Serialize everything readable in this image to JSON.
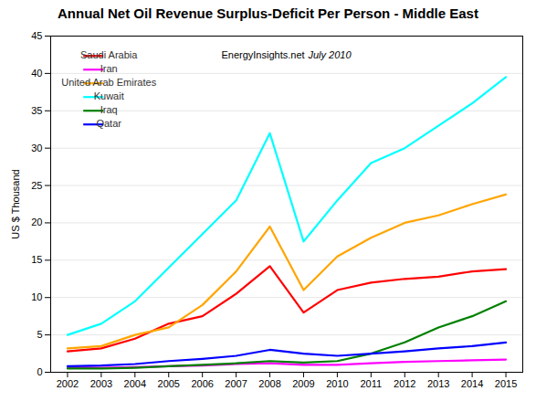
{
  "chart_data": {
    "type": "line",
    "title": "Annual Net Oil Revenue Surplus-Deficit Per Person - Middle East",
    "ylabel": "US $ Thousand",
    "annotations": [
      "EnergyInsights.net",
      "July 2010"
    ],
    "x": [
      2002,
      2003,
      2004,
      2005,
      2006,
      2007,
      2008,
      2009,
      2010,
      2011,
      2012,
      2013,
      2014,
      2015
    ],
    "xlim": [
      2001.5,
      2015.5
    ],
    "xticks": [
      2002,
      2003,
      2004,
      2005,
      2006,
      2007,
      2008,
      2009,
      2010,
      2011,
      2012,
      2013,
      2014,
      2015
    ],
    "ylim": [
      0,
      45
    ],
    "yticks": [
      0,
      5,
      10,
      15,
      20,
      25,
      30,
      35,
      40,
      45
    ],
    "grid": true,
    "legend": "upper left",
    "series": [
      {
        "name": "Saudi Arabia",
        "color": "#ff0000",
        "values": [
          2.8,
          3.2,
          4.5,
          6.5,
          7.5,
          10.5,
          14.2,
          8.0,
          11.0,
          12.0,
          12.5,
          12.8,
          13.5,
          13.8
        ]
      },
      {
        "name": "Iran",
        "color": "#ff00ff",
        "values": [
          0.7,
          0.6,
          0.7,
          0.8,
          0.9,
          1.1,
          1.2,
          1.0,
          1.0,
          1.2,
          1.4,
          1.5,
          1.6,
          1.7
        ]
      },
      {
        "name": "United Arab Emirates",
        "color": "#ffa500",
        "values": [
          3.2,
          3.5,
          5.0,
          6.0,
          9.0,
          13.5,
          19.5,
          11.0,
          15.5,
          18.0,
          20.0,
          21.0,
          22.5,
          23.8
        ]
      },
      {
        "name": "Kuwait",
        "color": "#00ffff",
        "values": [
          5.0,
          6.5,
          9.5,
          14.0,
          18.5,
          23.0,
          32.0,
          17.5,
          23.0,
          28.0,
          30.0,
          33.0,
          36.0,
          39.5
        ]
      },
      {
        "name": "Iraq",
        "color": "#008000",
        "values": [
          0.5,
          0.5,
          0.6,
          0.8,
          1.0,
          1.2,
          1.5,
          1.3,
          1.5,
          2.5,
          4.0,
          6.0,
          7.5,
          9.5
        ]
      },
      {
        "name": "Qatar",
        "color": "#0000ff",
        "values": [
          0.8,
          0.9,
          1.1,
          1.5,
          1.8,
          2.2,
          3.0,
          2.5,
          2.2,
          2.5,
          2.8,
          3.2,
          3.5,
          4.0
        ]
      }
    ]
  }
}
